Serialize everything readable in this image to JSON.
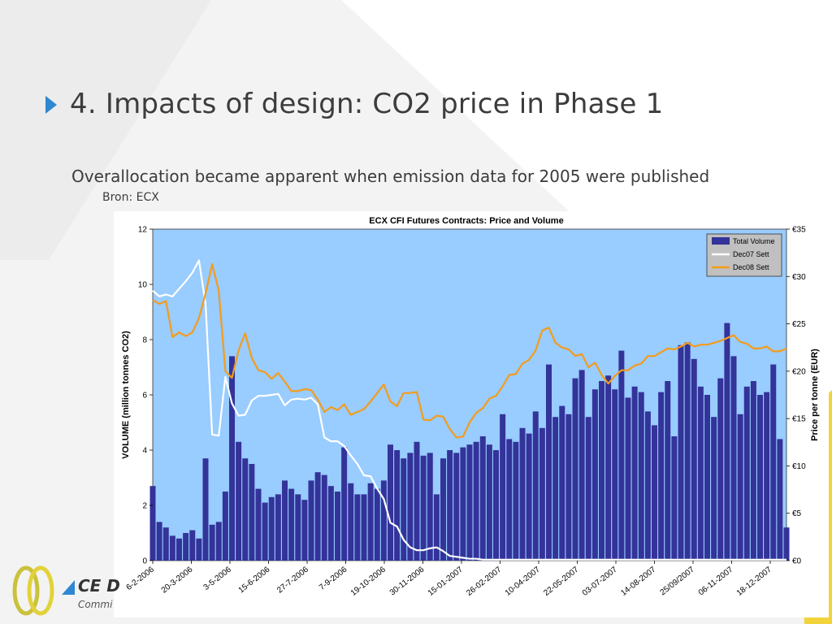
{
  "slide": {
    "title": "4. Impacts of design: CO2 price in Phase 1",
    "subtitle": "Overallocation became apparent when emission data for 2005 were published",
    "source": "Bron: ECX"
  },
  "logo": {
    "text": "CE D",
    "sub": "Commi"
  },
  "colors": {
    "plot_bg": "#99ccff",
    "volume": "#333399",
    "dec07": "#ffffff",
    "dec08": "#f39c1b",
    "accent": "#2f86d1",
    "stripe": "#f2d33a"
  },
  "chart_data": {
    "type": "bar+line",
    "title": "ECX CFI Futures Contracts: Price and Volume",
    "ylabel_left": "VOLUME (million tonnes CO2)",
    "ylabel_right": "Price per tonne (EUR)",
    "ylim_left": [
      0,
      12
    ],
    "ylim_right": [
      0,
      35
    ],
    "yticks_left": [
      "0",
      "2",
      "4",
      "6",
      "8",
      "10",
      "12"
    ],
    "yticks_right": [
      "€0",
      "€5",
      "€10",
      "€15",
      "€20",
      "€25",
      "€30",
      "€35"
    ],
    "x_tick_labels": [
      "6-2-2006",
      "20-3-2006",
      "3-5-2006",
      "15-6-2006",
      "27-7-2006",
      "7-9-2006",
      "19-10-2006",
      "30-11-2006",
      "15-01-2007",
      "26-02-2007",
      "10-04-2007",
      "22-05-2007",
      "03-07-2007",
      "14-08-2007",
      "25/09/2007",
      "06-11-2007",
      "18-12-2007"
    ],
    "legend": {
      "placement": "top-right",
      "entries": [
        "Total Volume",
        "Dec07 Sett",
        "Dec08 Sett"
      ]
    },
    "series": [
      {
        "name": "Total Volume",
        "kind": "bar",
        "x": [
          0,
          5,
          10,
          15,
          20,
          25,
          30,
          35,
          40,
          45,
          50,
          55,
          60,
          65,
          70,
          75,
          80,
          85,
          90,
          95,
          100,
          105,
          110,
          115,
          120,
          125,
          130,
          135,
          140,
          145,
          150,
          155,
          160,
          165,
          170,
          175,
          180,
          185,
          190,
          195,
          200,
          205,
          210,
          215,
          220,
          225,
          230,
          235,
          240,
          245,
          250,
          255,
          260,
          265,
          270,
          275,
          280,
          285,
          290,
          295,
          300,
          305,
          310,
          315,
          320,
          325,
          330,
          335,
          340,
          345,
          350,
          355,
          360,
          365,
          370,
          375,
          380,
          385,
          390,
          395,
          400,
          405,
          410,
          415,
          420,
          425,
          430,
          435,
          440,
          445,
          450,
          455,
          460,
          465,
          470,
          475,
          480
        ],
        "values": [
          2.7,
          1.4,
          1.2,
          0.9,
          0.8,
          1.0,
          1.1,
          0.8,
          3.7,
          1.3,
          1.4,
          2.5,
          7.4,
          4.3,
          3.7,
          3.5,
          2.6,
          2.1,
          2.3,
          2.4,
          2.9,
          2.6,
          2.4,
          2.2,
          2.9,
          3.2,
          3.1,
          2.7,
          2.5,
          4.1,
          2.8,
          2.4,
          2.4,
          2.8,
          2.6,
          2.9,
          4.2,
          4.0,
          3.7,
          3.9,
          4.3,
          3.8,
          3.9,
          2.4,
          3.7,
          4.0,
          3.9,
          4.1,
          4.2,
          4.3,
          4.5,
          4.2,
          4.0,
          5.3,
          4.4,
          4.3,
          4.8,
          4.6,
          5.4,
          4.8,
          7.1,
          5.2,
          5.6,
          5.3,
          6.6,
          6.9,
          5.2,
          6.2,
          6.5,
          6.7,
          6.2,
          7.6,
          5.9,
          6.3,
          6.1,
          5.4,
          4.9,
          6.1,
          6.5,
          4.5,
          7.8,
          7.9,
          7.3,
          6.3,
          6.0,
          5.2,
          6.6,
          8.6,
          7.4,
          5.3,
          6.3,
          6.5,
          6.0,
          6.1,
          7.1,
          4.4,
          1.2
        ]
      },
      {
        "name": "Dec07 Sett",
        "kind": "line",
        "x": [
          0,
          5,
          10,
          15,
          20,
          25,
          30,
          35,
          40,
          45,
          50,
          55,
          60,
          65,
          70,
          75,
          80,
          85,
          90,
          95,
          100,
          105,
          110,
          115,
          120,
          125,
          130,
          135,
          140,
          145,
          150,
          155,
          160,
          165,
          170,
          175,
          180,
          185,
          190,
          195,
          200,
          205,
          210,
          215,
          220,
          225,
          230,
          235,
          240,
          245,
          250,
          255,
          260,
          265,
          270,
          275,
          280,
          285,
          290,
          295,
          300,
          305,
          310,
          315,
          320,
          325,
          330,
          335,
          340,
          345,
          350,
          355,
          360,
          365,
          370,
          375,
          380,
          385,
          390,
          395,
          400,
          405,
          410,
          415,
          420,
          425,
          430,
          435,
          440,
          445,
          450,
          455,
          460,
          465,
          470,
          475,
          480
        ],
        "values": [
          28.5,
          27.9,
          28.1,
          27.9,
          28.7,
          29.5,
          30.4,
          31.7,
          27.1,
          13.3,
          13.2,
          19.4,
          16.6,
          15.3,
          15.4,
          16.9,
          17.4,
          17.4,
          17.5,
          17.6,
          16.4,
          17.0,
          17.1,
          17.0,
          17.2,
          16.5,
          13.0,
          12.6,
          12.6,
          12.1,
          11.1,
          10.2,
          9.0,
          8.9,
          7.6,
          6.5,
          4.0,
          3.6,
          2.2,
          1.4,
          1.1,
          1.1,
          1.3,
          1.4,
          1.0,
          0.5,
          0.4,
          0.3,
          0.2,
          0.2,
          0.1,
          0.1,
          0.1,
          0.1,
          0.1,
          0.1,
          0.1,
          0.1,
          0.1,
          0.1,
          0.1,
          0.1,
          0.1,
          0.1,
          0.1,
          0.1,
          0.1,
          0.1,
          0.1,
          0.1,
          0.1,
          0.1,
          0.1,
          0.1,
          0.1,
          0.1,
          0.1,
          0.1,
          0.1,
          0.1,
          0.1,
          0.1,
          0.1,
          0.1,
          0.1,
          0.1,
          0.1,
          0.1,
          0.1,
          0.1,
          0.1,
          0.1,
          0.1,
          0.1,
          0.1,
          0.1,
          0.1
        ]
      },
      {
        "name": "Dec08 Sett",
        "kind": "line",
        "x": [
          0,
          5,
          10,
          15,
          20,
          25,
          30,
          35,
          40,
          45,
          50,
          55,
          60,
          65,
          70,
          75,
          80,
          85,
          90,
          95,
          100,
          105,
          110,
          115,
          120,
          125,
          130,
          135,
          140,
          145,
          150,
          155,
          160,
          165,
          170,
          175,
          180,
          185,
          190,
          195,
          200,
          205,
          210,
          215,
          220,
          225,
          230,
          235,
          240,
          245,
          250,
          255,
          260,
          265,
          270,
          275,
          280,
          285,
          290,
          295,
          300,
          305,
          310,
          315,
          320,
          325,
          330,
          335,
          340,
          345,
          350,
          355,
          360,
          365,
          370,
          375,
          380,
          385,
          390,
          395,
          400,
          405,
          410,
          415,
          420,
          425,
          430,
          435,
          440,
          445,
          450,
          455,
          460,
          465,
          470,
          475,
          480
        ],
        "values": [
          27.5,
          27.1,
          27.4,
          23.6,
          24.1,
          23.7,
          24.1,
          25.6,
          28.2,
          31.3,
          28.5,
          20.0,
          19.3,
          22.2,
          24.0,
          21.4,
          20.1,
          19.9,
          19.2,
          19.8,
          18.9,
          17.9,
          17.9,
          18.1,
          18.0,
          17.0,
          15.7,
          16.2,
          15.9,
          16.5,
          15.4,
          15.7,
          16.0,
          16.8,
          17.7,
          18.6,
          16.8,
          16.3,
          17.7,
          17.7,
          17.8,
          14.9,
          14.8,
          15.3,
          15.2,
          13.9,
          13.0,
          13.1,
          14.6,
          15.6,
          16.1,
          17.1,
          17.4,
          18.4,
          19.6,
          19.7,
          20.8,
          21.2,
          22.2,
          24.3,
          24.6,
          23.0,
          22.5,
          22.3,
          21.6,
          21.8,
          20.4,
          20.9,
          19.6,
          18.7,
          19.5,
          20.1,
          20.1,
          20.6,
          20.8,
          21.6,
          21.6,
          22.0,
          22.4,
          22.3,
          22.6,
          23.0,
          22.6,
          22.8,
          22.8,
          23.0,
          23.2,
          23.5,
          23.8,
          23.1,
          22.9,
          22.4,
          22.4,
          22.6,
          22.1,
          22.1,
          22.4
        ]
      }
    ],
    "grid": false
  }
}
